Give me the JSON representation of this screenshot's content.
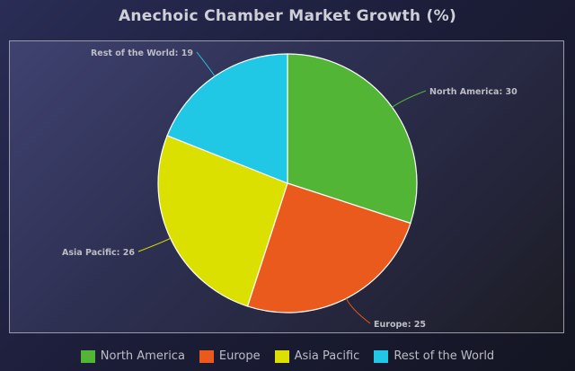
{
  "chart_data": {
    "type": "pie",
    "title": "Anechoic Chamber Market Growth (%)",
    "categories": [
      "North America",
      "Europe",
      "Asia Pacific",
      "Rest of the World"
    ],
    "values": [
      30,
      25,
      26,
      19
    ],
    "colors": [
      "#52b535",
      "#ea5a1c",
      "#dce000",
      "#21c8e6"
    ],
    "labels": [
      "North America: 30",
      "Europe: 25",
      "Asia Pacific: 26",
      "Rest of the World: 19"
    ],
    "legend_position": "bottom"
  }
}
